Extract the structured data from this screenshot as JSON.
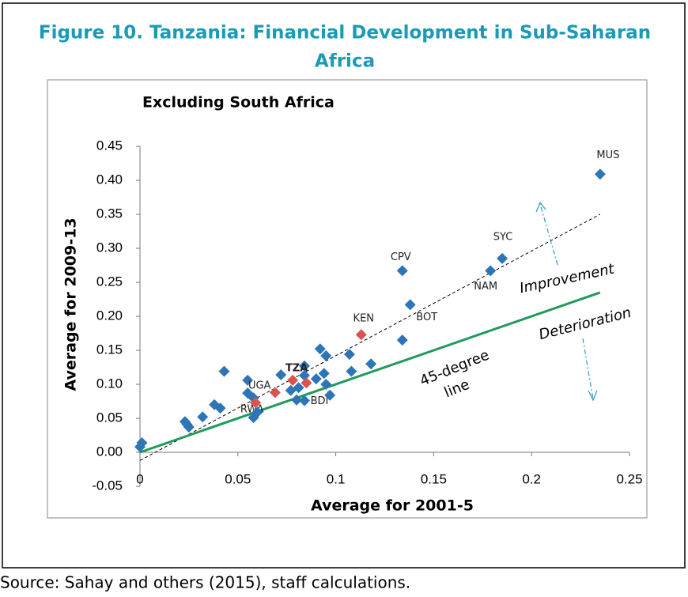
{
  "chart_data": {
    "type": "scatter",
    "title": "Figure 10. Tanzania: Financial Development in Sub-Saharan Africa",
    "title_lines": [
      "Figure 10. Tanzania: Financial Development in Sub-Saharan",
      "Africa"
    ],
    "subtitle": "Excluding South Africa",
    "x_label": "Average for 2001-5",
    "y_label": "Average for 2009-13",
    "xlim": [
      0,
      0.25
    ],
    "xticks": [
      0,
      0.05,
      0.1,
      0.15,
      0.2,
      0.25
    ],
    "ylim": [
      -0.05,
      0.45
    ],
    "yticks": [
      {
        "value": -0.05,
        "label": "-0.05"
      },
      {
        "value": 0,
        "label": "0.00"
      },
      {
        "value": 0.05,
        "label": "0.05"
      },
      {
        "value": 0.1,
        "label": "0.10"
      },
      {
        "value": 0.15,
        "label": "0.15"
      },
      {
        "value": 0.2,
        "label": "0.20"
      },
      {
        "value": 0.25,
        "label": "0.25"
      },
      {
        "value": 0.3,
        "label": "0.30"
      },
      {
        "value": 0.35,
        "label": "0.35"
      },
      {
        "value": 0.4,
        "label": "0.40"
      },
      {
        "value": 0.45,
        "label": "0.45"
      }
    ],
    "series": [
      {
        "color": "#2e75b6",
        "x": [
          0.0,
          0.001,
          0.023,
          0.024,
          0.025,
          0.032,
          0.038,
          0.041,
          0.043,
          0.055,
          0.055,
          0.058,
          0.058,
          0.06,
          0.072,
          0.084,
          0.084,
          0.077,
          0.08,
          0.081,
          0.084,
          0.09,
          0.092,
          0.095,
          0.094,
          0.095,
          0.097,
          0.107,
          0.108,
          0.118,
          0.134,
          0.134,
          0.138,
          0.179,
          0.185,
          0.235
        ],
        "values": [
          0.008,
          0.014,
          0.045,
          0.041,
          0.037,
          0.052,
          0.07,
          0.065,
          0.119,
          0.106,
          0.087,
          0.08,
          0.051,
          0.059,
          0.114,
          0.127,
          0.113,
          0.091,
          0.077,
          0.095,
          0.076,
          0.108,
          0.152,
          0.142,
          0.116,
          0.1,
          0.084,
          0.144,
          0.119,
          0.13,
          0.165,
          0.267,
          0.217,
          0.267,
          0.285,
          0.409
        ],
        "point_labels": [
          null,
          null,
          null,
          null,
          null,
          null,
          null,
          null,
          null,
          null,
          "UGA",
          null,
          "RWA",
          null,
          null,
          null,
          null,
          null,
          null,
          null,
          "BDI",
          null,
          null,
          null,
          null,
          null,
          null,
          null,
          null,
          null,
          null,
          "CPV",
          "BOT",
          "NAM",
          "SYC",
          "MUS"
        ]
      },
      {
        "color": "#d9534f",
        "x": [
          0.059,
          0.069,
          0.078,
          0.085,
          0.113
        ],
        "values": [
          0.073,
          0.088,
          0.106,
          0.102,
          0.173
        ],
        "point_labels": [
          null,
          null,
          "TZA",
          null,
          "KEN"
        ]
      }
    ],
    "lines": [
      {
        "color": "#000000",
        "dashed": true,
        "x": [
          0,
          0.235
        ],
        "values": [
          -0.012,
          0.35
        ]
      },
      {
        "color": "#1e9a5a",
        "dashed": false,
        "x": [
          0,
          0.235
        ],
        "values": [
          0,
          0.235
        ]
      }
    ],
    "annotations": {
      "improvement": "Improvement",
      "deterioration": "Deterioration",
      "line_label": [
        "45-degree",
        "line"
      ]
    },
    "source": "Source: Sahay and others (2015), staff calculations."
  }
}
